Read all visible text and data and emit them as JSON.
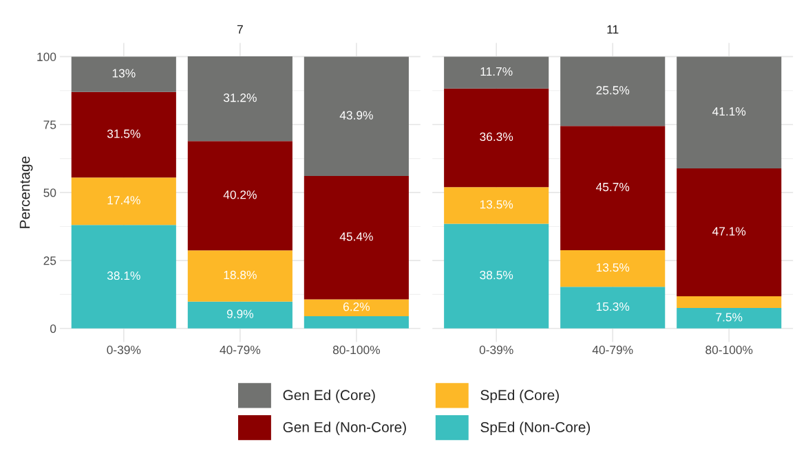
{
  "chart_data": [
    {
      "type": "bar",
      "title": "7",
      "ylabel": "Percentage",
      "categories": [
        "0-39%",
        "40-79%",
        "80-100%"
      ],
      "stacked": true,
      "ylim": [
        -5,
        105
      ],
      "yticks": [
        0,
        25,
        50,
        75,
        100
      ],
      "grid": true,
      "legend": "bottom",
      "series": [
        {
          "name": "SpEd (Non-Core)",
          "color": "#3bbfbf",
          "values": [
            38.1,
            9.9,
            4.5
          ],
          "value_labels": [
            "38.1%",
            "9.9%",
            null
          ]
        },
        {
          "name": "SpEd (Core)",
          "color": "#fdb827",
          "values": [
            17.4,
            18.8,
            6.2
          ],
          "value_labels": [
            "17.4%",
            "18.8%",
            "6.2%"
          ]
        },
        {
          "name": "Gen Ed (Non-Core)",
          "color": "#8b0000",
          "values": [
            31.5,
            40.2,
            45.4
          ],
          "value_labels": [
            "31.5%",
            "40.2%",
            "45.4%"
          ]
        },
        {
          "name": "Gen Ed (Core)",
          "color": "#717270",
          "values": [
            13,
            31.2,
            43.9
          ],
          "value_labels": [
            "13%",
            "31.2%",
            "43.9%"
          ]
        }
      ]
    },
    {
      "type": "bar",
      "title": "11",
      "categories": [
        "0-39%",
        "40-79%",
        "80-100%"
      ],
      "stacked": true,
      "ylim": [
        -5,
        105
      ],
      "yticks": [
        0,
        25,
        50,
        75,
        100
      ],
      "grid": true,
      "tick_labels": "x",
      "series": [
        {
          "color": "#3bbfbf",
          "values": [
            38.5,
            15.3,
            7.5
          ],
          "value_labels": [
            "38.5%",
            "15.3%",
            "7.5%"
          ]
        },
        {
          "color": "#fdb827",
          "values": [
            13.5,
            13.5,
            4.3
          ],
          "value_labels": [
            "13.5%",
            "13.5%",
            null
          ]
        },
        {
          "color": "#8b0000",
          "values": [
            36.3,
            45.7,
            47.1
          ],
          "value_labels": [
            "36.3%",
            "45.7%",
            "47.1%"
          ]
        },
        {
          "color": "#717270",
          "values": [
            11.7,
            25.5,
            41.1
          ],
          "value_labels": [
            "11.7%",
            "25.5%",
            "41.1%"
          ]
        }
      ]
    }
  ]
}
